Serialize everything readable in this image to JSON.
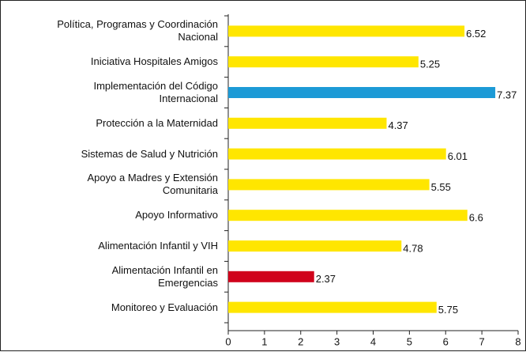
{
  "chart_data": {
    "type": "bar",
    "orientation": "horizontal",
    "categories": [
      "Política, Programas y Coordinación\nNacional",
      "Iniciativa Hospitales Amigos",
      "Implementación del Código\nInternacional",
      "Protección a la Maternidad",
      "Sistemas de Salud y Nutrición",
      "Apoyo a Madres y Extensión\nComunitaria",
      "Apoyo Informativo",
      "Alimentación Infantil y VIH",
      "Alimentación Infantil en\nEmergencias",
      "Monitoreo y Evaluación"
    ],
    "values": [
      6.52,
      5.25,
      7.37,
      4.37,
      6.01,
      5.55,
      6.6,
      4.78,
      2.37,
      5.75
    ],
    "colors": [
      "#ffe600",
      "#ffe600",
      "#1c9ad6",
      "#ffe600",
      "#ffe600",
      "#ffe600",
      "#ffe600",
      "#ffe600",
      "#d0021b",
      "#ffe600"
    ],
    "xlim": [
      0,
      8
    ],
    "xticks": [
      0,
      1,
      2,
      3,
      4,
      5,
      6,
      7,
      8
    ],
    "grid": false
  }
}
